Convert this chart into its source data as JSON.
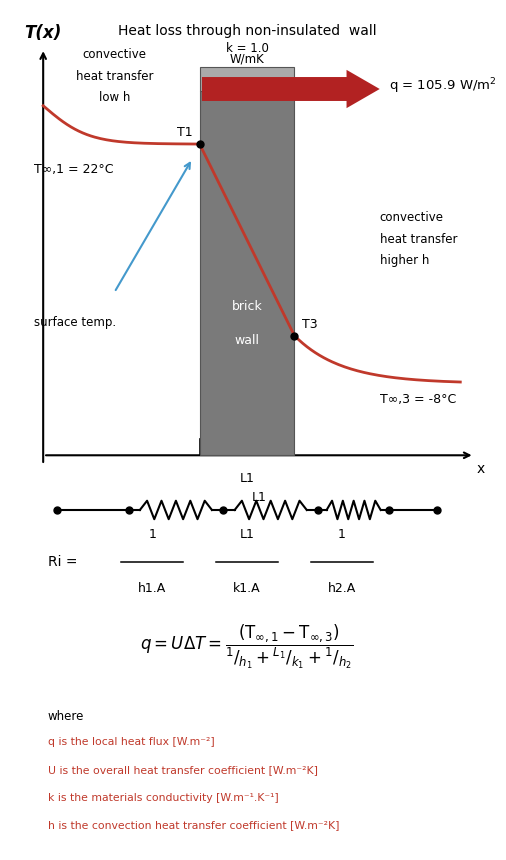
{
  "title": "Heat loss through non-insulated  wall",
  "title_x_label": "T(x)",
  "bg_color": "#ffffff",
  "text_color": "#000000",
  "curve_color": "#c0392b",
  "arrow_fill_color": "#b22222",
  "wall_gray": "#888888",
  "wall_gray_light": "#aaaaaa",
  "wall_gray_dark": "#666666",
  "T_inf1": "T∞,1 = 22°C",
  "T_inf3": "T∞,3 = -8°C",
  "T1_label": "T1",
  "T3_label": "T3",
  "k_label": "k = 1.0\nW/mK",
  "q_label": "q = 105.9 W/m²",
  "conv_left_1": "convective",
  "conv_left_2": "heat transfer",
  "conv_left_3": "low h",
  "conv_right_1": "convective",
  "conv_right_2": "heat transfer",
  "conv_right_3": "higher h",
  "surface_temp": "surface temp.",
  "brick_wall_1": "brick",
  "brick_wall_2": "wall",
  "x_label": "x",
  "L1_label": "L1",
  "Ri_label": "Ri =",
  "frac_nums": [
    "1",
    "L1",
    "1"
  ],
  "frac_dens": [
    "h1.A",
    "k1.A",
    "h2.A"
  ],
  "where_text": "where",
  "desc1": "q is the local heat flux [W.m⁻²]",
  "desc2": "U is the overall heat transfer coefficient [W.m⁻²K]",
  "desc3": "k is the materials conductivity [W.m⁻¹.K⁻¹]",
  "desc4": "h is the convection heat transfer coefficient [W.m⁻²K]",
  "desc_color": "#c0392b",
  "desc_black": "#000000"
}
